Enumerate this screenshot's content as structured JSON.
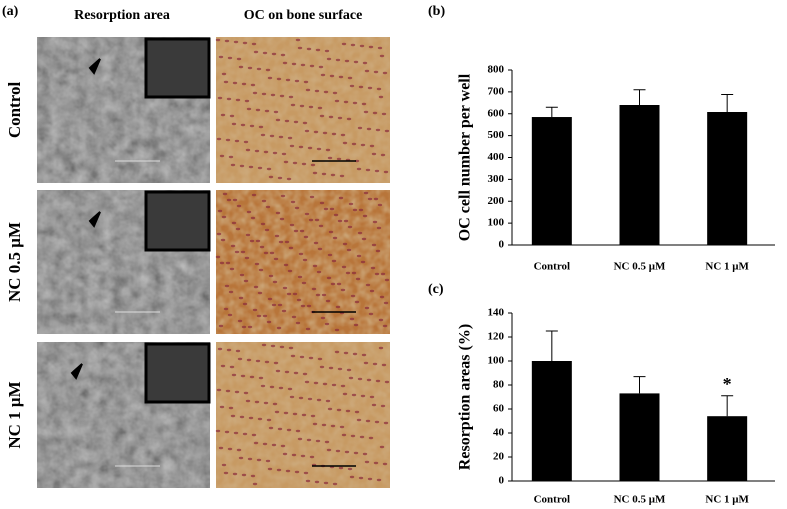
{
  "panel_a": {
    "label": "(a)",
    "columns": [
      "Resorption area",
      "OC on bone surface"
    ],
    "rows": [
      "Control",
      "NC 0.5 μM",
      "NC 1 μM"
    ]
  },
  "chart_data": [
    {
      "type": "bar",
      "label": "(b)",
      "y_label": "OC cell number per well",
      "categories": [
        "Control",
        "NC 0.5 μM",
        "NC 1 μM"
      ],
      "values": [
        585,
        640,
        608
      ],
      "errors": [
        45,
        70,
        80
      ],
      "significance": [
        null,
        null,
        null
      ],
      "color": "#000000",
      "ylim": [
        0,
        800
      ],
      "yticks": [
        0,
        100,
        200,
        300,
        400,
        500,
        600,
        700,
        800
      ],
      "grid": false
    },
    {
      "type": "bar",
      "label": "(c)",
      "y_label": "Resorption areas (%)",
      "categories": [
        "Control",
        "NC 0.5 μM",
        "NC 1 μM"
      ],
      "values": [
        100,
        73,
        54
      ],
      "errors": [
        25,
        14,
        17
      ],
      "significance": [
        null,
        null,
        "*"
      ],
      "color": "#000000",
      "ylim": [
        0,
        140
      ],
      "yticks": [
        0,
        20,
        40,
        60,
        80,
        100,
        120,
        140
      ],
      "grid": false
    }
  ]
}
